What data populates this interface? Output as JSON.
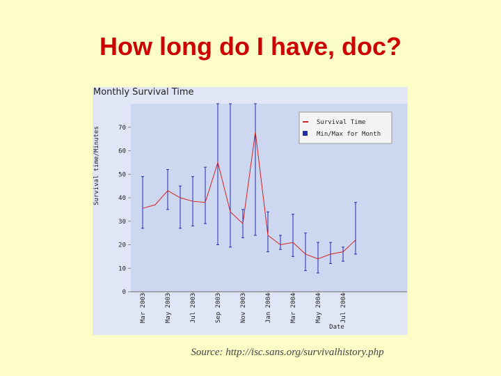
{
  "slide": {
    "title": "How long do I have, doc?",
    "source": "Source: http://isc.sans.org/survivalhistory.php"
  },
  "colors": {
    "slide_background": "#fdfdc8",
    "title": "#cc0000",
    "panel_background": "#e0e6f5",
    "plot_background": "#cdd7f0",
    "survival_line": "#d42020",
    "minmax_bars": "#1f2fa8"
  },
  "chart_data": {
    "type": "line",
    "title": "Monthly Survival Time",
    "xlabel": "Date",
    "ylabel": "Survival time/Minutes",
    "ylim": [
      0,
      80
    ],
    "yticks": [
      0,
      10,
      20,
      30,
      40,
      50,
      60,
      70
    ],
    "grid": false,
    "legend_position": "top-right",
    "x_tick_labels": [
      "Mar 2003",
      "May 2003",
      "Jul 2003",
      "Sep 2003",
      "Nov 2003",
      "Jan 2004",
      "Mar 2004",
      "May 2004",
      "Jul 2004"
    ],
    "months": [
      "Mar 2003",
      "Apr 2003",
      "May 2003",
      "Jun 2003",
      "Jul 2003",
      "Aug 2003",
      "Sep 2003",
      "Oct 2003",
      "Nov 2003",
      "Dec 2003",
      "Jan 2004",
      "Feb 2004",
      "Mar 2004",
      "Apr 2004",
      "May 2004",
      "Jun 2004",
      "Jul 2004",
      "Aug 2004"
    ],
    "series": [
      {
        "name": "Survival Time",
        "type": "line",
        "values": [
          35.5,
          37,
          43,
          40,
          38.5,
          38,
          55,
          34,
          29,
          68,
          24,
          20,
          21,
          16,
          14,
          16,
          17,
          22
        ]
      },
      {
        "name": "Min/Max for Month",
        "type": "range",
        "min": [
          27,
          null,
          35,
          27,
          28,
          29,
          20,
          19,
          23,
          24,
          17,
          18,
          15,
          9,
          8,
          12,
          13,
          16
        ],
        "max": [
          49,
          null,
          52,
          45,
          49,
          53,
          80,
          80,
          35,
          80,
          34,
          24,
          33,
          25,
          21,
          21,
          19,
          38
        ]
      }
    ]
  }
}
